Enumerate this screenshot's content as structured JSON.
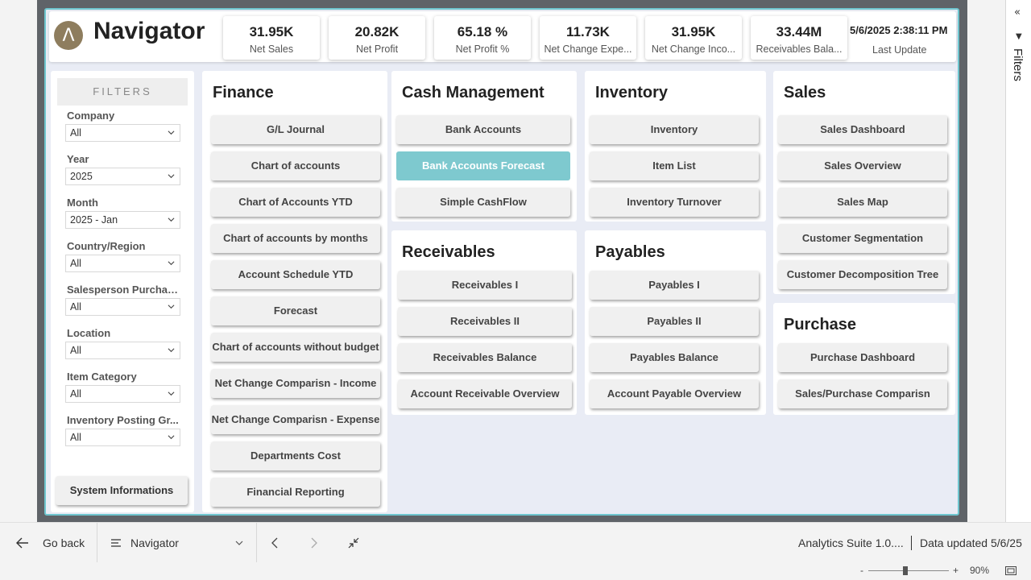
{
  "app": {
    "logo_letter": "Λ",
    "title": "Navigator"
  },
  "kpis": [
    {
      "value": "31.95K",
      "label": "Net Sales"
    },
    {
      "value": "20.82K",
      "label": "Net Profit"
    },
    {
      "value": "65.18 %",
      "label": "Net Profit %"
    },
    {
      "value": "11.73K",
      "label": "Net Change Expe..."
    },
    {
      "value": "31.95K",
      "label": "Net Change Inco..."
    },
    {
      "value": "33.44M",
      "label": "Receivables Bala..."
    }
  ],
  "last_update": {
    "timestamp": "5/6/2025 2:38:11 PM",
    "label": "Last Update"
  },
  "filters": {
    "title": "FILTERS",
    "items": [
      {
        "label": "Company",
        "value": "All"
      },
      {
        "label": "Year",
        "value": "2025"
      },
      {
        "label": "Month",
        "value": "2025 - Jan"
      },
      {
        "label": "Country/Region",
        "value": "All"
      },
      {
        "label": "Salesperson Purchaser",
        "value": "All"
      },
      {
        "label": "Location",
        "value": "All"
      },
      {
        "label": "Item Category",
        "value": "All"
      },
      {
        "label": "Inventory Posting Gr...",
        "value": "All"
      }
    ],
    "system_button": "System Informations"
  },
  "sections": {
    "finance": {
      "title": "Finance",
      "buttons": [
        "G/L Journal",
        "Chart of accounts",
        "Chart of Accounts YTD",
        "Chart of accounts by months",
        "Account Schedule YTD",
        "Forecast",
        "Chart of accounts without budget",
        "Net Change Comparisn - Income",
        "Net Change Comparisn - Expense",
        "Departments Cost",
        "Financial Reporting"
      ]
    },
    "cash": {
      "title": "Cash Management",
      "buttons": [
        "Bank Accounts",
        "Bank Accounts Forecast",
        "Simple CashFlow"
      ],
      "active_index": 1
    },
    "inventory": {
      "title": "Inventory",
      "buttons": [
        "Inventory",
        "Item List",
        "Inventory Turnover"
      ]
    },
    "sales": {
      "title": "Sales",
      "buttons": [
        "Sales Dashboard",
        "Sales Overview",
        "Sales Map",
        "Customer Segmentation",
        "Customer Decomposition Tree"
      ]
    },
    "receivables": {
      "title": "Receivables",
      "buttons": [
        "Receivables I",
        "Receivables II",
        "Receivables Balance",
        "Account Receivable Overview"
      ]
    },
    "payables": {
      "title": "Payables",
      "buttons": [
        "Payables I",
        "Payables II",
        "Payables Balance",
        "Account Payable Overview"
      ]
    },
    "purchase": {
      "title": "Purchase",
      "buttons": [
        "Purchase Dashboard",
        "Sales/Purchase Comparisn"
      ]
    }
  },
  "side_pane": {
    "label": "Filters"
  },
  "bottom_bar": {
    "go_back": "Go back",
    "page_name": "Navigator",
    "app_name": "Analytics Suite 1.0....",
    "data_updated": "Data updated 5/6/25"
  },
  "zoom": {
    "minus": "-",
    "plus": "+",
    "level": "90%"
  },
  "colors": {
    "accent": "#7ec9cf",
    "frame": "#5f6368",
    "report_bg": "#e9ecf5"
  }
}
